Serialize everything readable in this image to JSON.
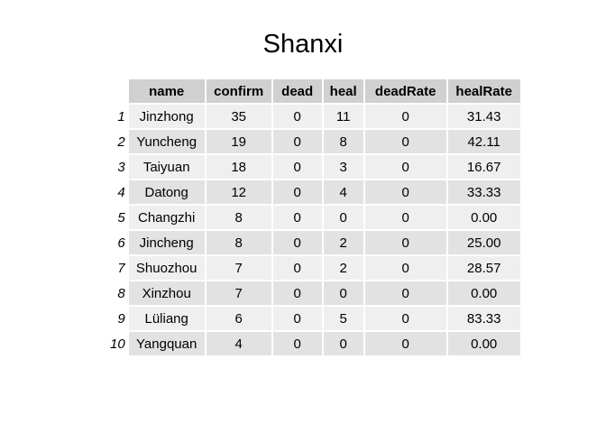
{
  "title": "Shanxi",
  "chart_data": {
    "type": "table",
    "title": "Shanxi",
    "columns": [
      "name",
      "confirm",
      "dead",
      "heal",
      "deadRate",
      "healRate"
    ],
    "rows": [
      {
        "n": "1",
        "name": "Jinzhong",
        "confirm": "35",
        "dead": "0",
        "heal": "11",
        "deadRate": "0",
        "healRate": "31.43"
      },
      {
        "n": "2",
        "name": "Yuncheng",
        "confirm": "19",
        "dead": "0",
        "heal": "8",
        "deadRate": "0",
        "healRate": "42.11"
      },
      {
        "n": "3",
        "name": "Taiyuan",
        "confirm": "18",
        "dead": "0",
        "heal": "3",
        "deadRate": "0",
        "healRate": "16.67"
      },
      {
        "n": "4",
        "name": "Datong",
        "confirm": "12",
        "dead": "0",
        "heal": "4",
        "deadRate": "0",
        "healRate": "33.33"
      },
      {
        "n": "5",
        "name": "Changzhi",
        "confirm": "8",
        "dead": "0",
        "heal": "0",
        "deadRate": "0",
        "healRate": "0.00"
      },
      {
        "n": "6",
        "name": "Jincheng",
        "confirm": "8",
        "dead": "0",
        "heal": "2",
        "deadRate": "0",
        "healRate": "25.00"
      },
      {
        "n": "7",
        "name": "Shuozhou",
        "confirm": "7",
        "dead": "0",
        "heal": "2",
        "deadRate": "0",
        "healRate": "28.57"
      },
      {
        "n": "8",
        "name": "Xinzhou",
        "confirm": "7",
        "dead": "0",
        "heal": "0",
        "deadRate": "0",
        "healRate": "0.00"
      },
      {
        "n": "9",
        "name": "Lüliang",
        "confirm": "6",
        "dead": "0",
        "heal": "5",
        "deadRate": "0",
        "healRate": "83.33"
      },
      {
        "n": "10",
        "name": "Yangquan",
        "confirm": "4",
        "dead": "0",
        "heal": "0",
        "deadRate": "0",
        "healRate": "0.00"
      }
    ]
  },
  "colors": {
    "header_bg": "#d0d0d0",
    "row_light": "#efefef",
    "row_dark": "#e2e2e2"
  }
}
